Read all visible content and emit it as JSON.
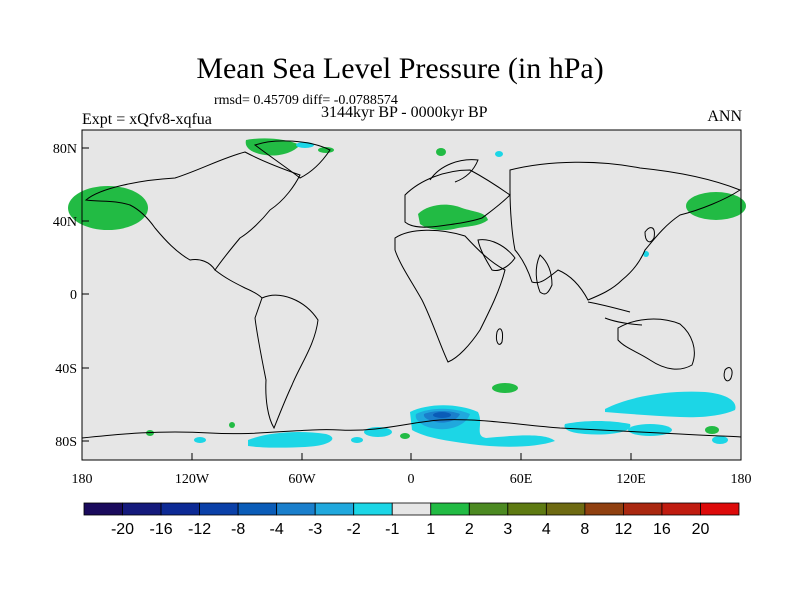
{
  "title": "Mean Sea Level Pressure (in hPa)",
  "stats": "rmsd= 0.45709 diff= -0.0788574",
  "experiment": "Expt = xQfv8-xqfua",
  "period": "3144kyr BP - 0000kyr BP",
  "season": "ANN",
  "axes": {
    "x_ticks": [
      "180",
      "120W",
      "60W",
      "0",
      "60E",
      "120E",
      "180"
    ],
    "y_ticks": [
      "80N",
      "40N",
      "0",
      "40S",
      "80S"
    ]
  },
  "colorbar": {
    "labels": [
      "-20",
      "-16",
      "-12",
      "-8",
      "-4",
      "-3",
      "-2",
      "-1",
      "1",
      "2",
      "3",
      "4",
      "8",
      "12",
      "16",
      "20"
    ],
    "colors": [
      "#1a0a5c",
      "#151a7c",
      "#0d2a95",
      "#0a40a8",
      "#0a5cb8",
      "#1a7fcc",
      "#20a8dd",
      "#1cd6e6",
      "#e6e6e6",
      "#22bb44",
      "#4c8a22",
      "#5e7a12",
      "#6e6a12",
      "#904010",
      "#aa2810",
      "#c01c10",
      "#dd0a0a"
    ]
  },
  "palette": {
    "background": "#e6e6e6",
    "positive": "#22bb44",
    "negative_light": "#1cd6e6",
    "negative_mid": "#20a8dd",
    "negative_strong": "#1a7fcc",
    "negative_max": "#0a5cb8"
  }
}
